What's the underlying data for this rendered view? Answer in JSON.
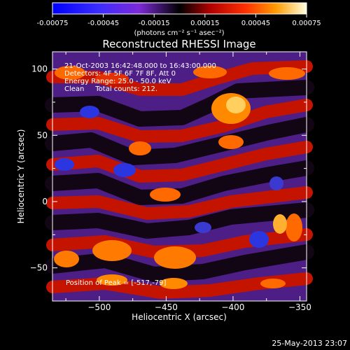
{
  "colorbar": {
    "tick_labels": [
      "-0.00075",
      "-0.00045",
      "-0.00015",
      "0.00015",
      "0.00045",
      "0.00075"
    ],
    "units_label": "(photons cm⁻² s⁻¹ asec⁻²)",
    "range": [
      -0.00075,
      0.00075
    ]
  },
  "chart_data": {
    "type": "heatmap",
    "title": "Reconstructed RHESSI Image",
    "xlabel": "Heliocentric X (arcsec)",
    "ylabel": "Heliocentric Y (arcsec)",
    "xlim": [
      -535,
      -345
    ],
    "ylim": [
      -75,
      113
    ],
    "x_ticks": [
      -500,
      -450,
      -400,
      -350
    ],
    "y_ticks": [
      -50,
      0,
      50,
      100
    ],
    "x_tick_labels": [
      "−500",
      "−450",
      "−400",
      "−350"
    ],
    "y_tick_labels": [
      "−50",
      "0",
      "50",
      "100"
    ],
    "annotations": [
      "21-Oct-2003 16:42:48.000 to 16:43:00.000",
      "Detectors: 4F 5F 6F 7F 8F, Att 0",
      "Energy Range: 25.0 - 50.0 keV",
      "Clean     Total counts: 212."
    ],
    "peak_label": "Position of Peak = [-517,-79]",
    "peak_position": [
      -517,
      -79
    ]
  },
  "footer": {
    "timestamp": "25-May-2013 23:07"
  },
  "colors": {
    "background": "#000000",
    "foreground": "#ffffff"
  }
}
